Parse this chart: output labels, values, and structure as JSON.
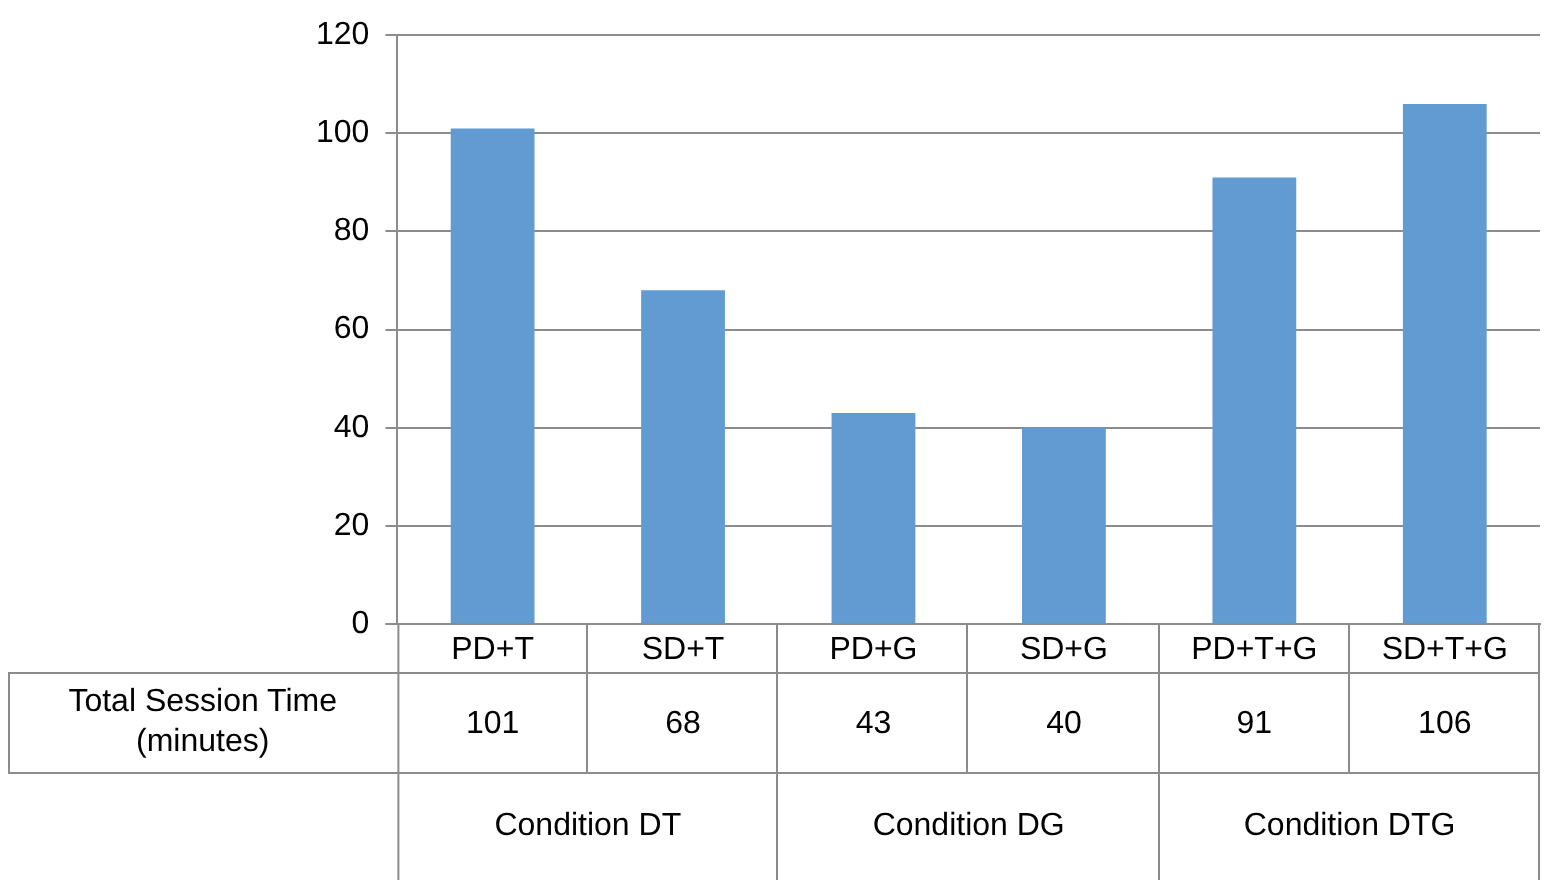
{
  "chart_data": {
    "type": "bar",
    "categories": [
      "PD+T",
      "SD+T",
      "PD+G",
      "SD+G",
      "PD+T+G",
      "SD+T+G"
    ],
    "series": [
      {
        "name": "Total Session Time (minutes)",
        "color": "#629bd1",
        "values": [
          101,
          68,
          43,
          40,
          91,
          106
        ]
      }
    ],
    "ylim": [
      0,
      120
    ],
    "yticks": [
      0,
      20,
      40,
      60,
      80,
      100,
      120
    ],
    "grid": "y",
    "legend": false,
    "data_labels": true,
    "annotations": [
      "Condition DT",
      "Condition DG",
      "Condition DTG"
    ]
  }
}
